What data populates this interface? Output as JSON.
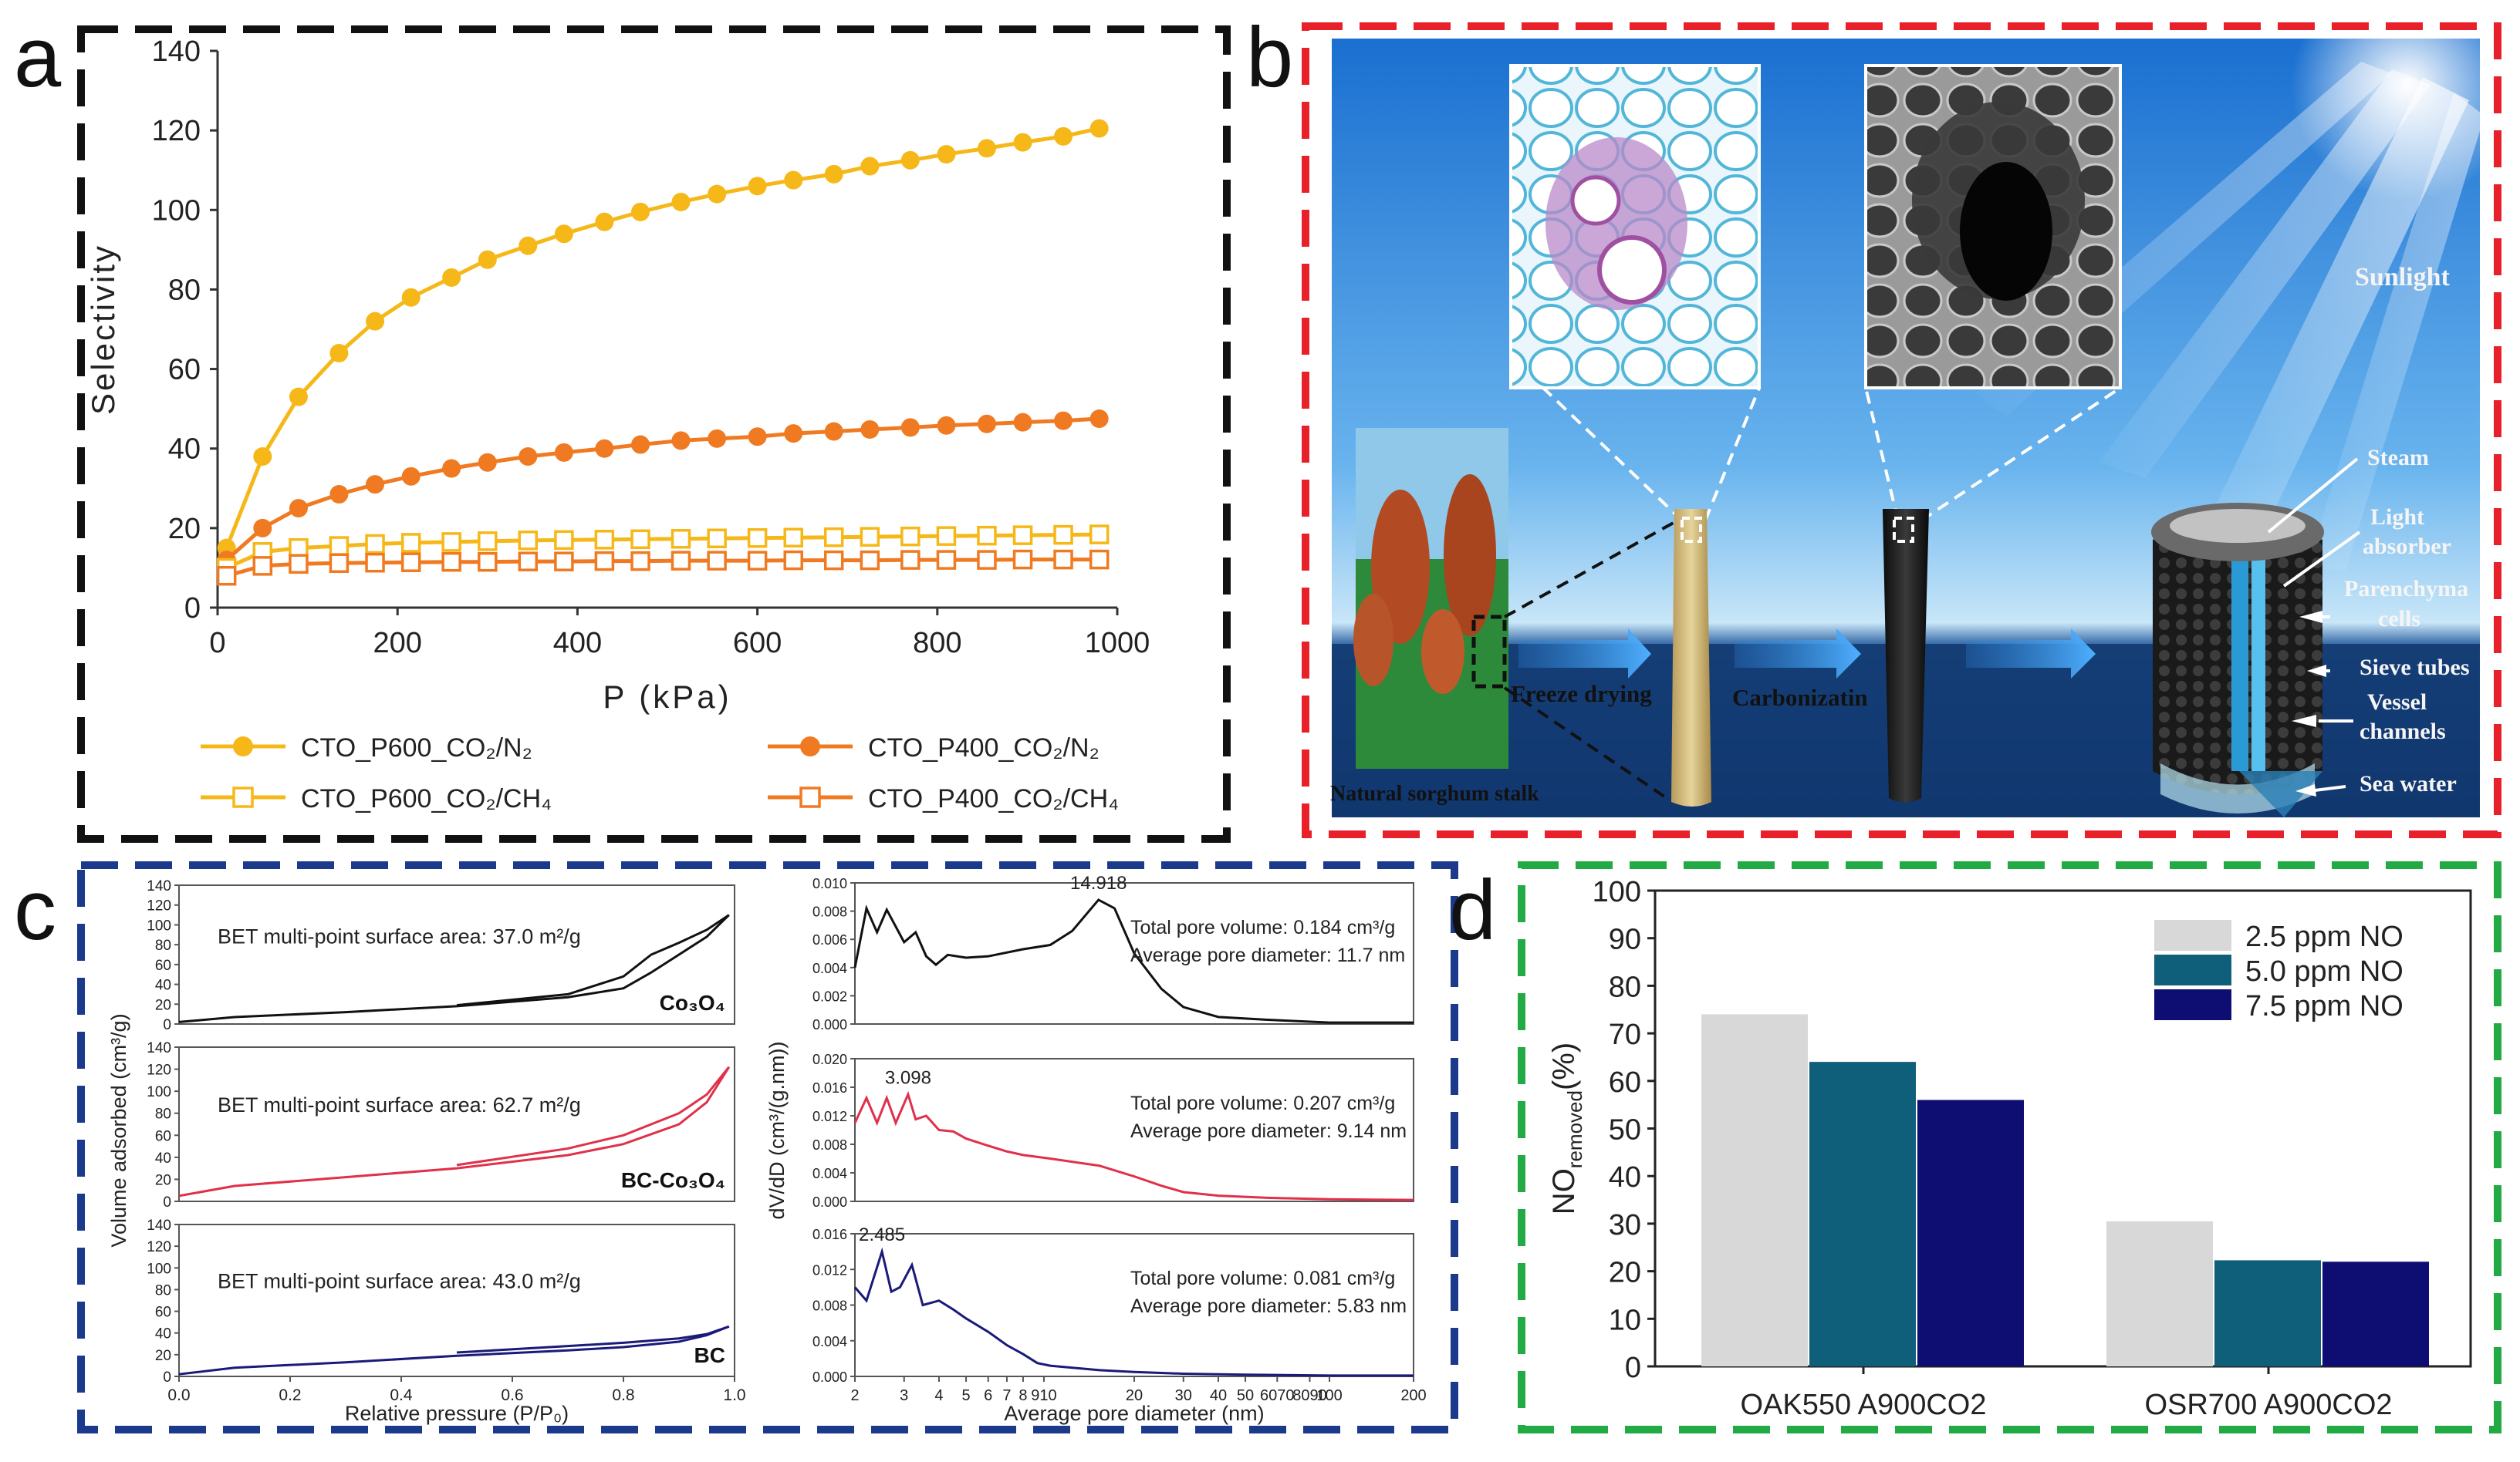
{
  "panel_labels": {
    "a": "a",
    "b": "b",
    "c": "c",
    "d": "d"
  },
  "colors": {
    "yellow": "#f5b818",
    "orange": "#f07a22",
    "black_frame": "#111111",
    "red_frame": "#e8202a",
    "blue_frame": "#1c3a8c",
    "green_frame": "#22aa44",
    "light_gray_bar": "#d8d8d8",
    "teal_bar": "#0f5e7a",
    "navy_bar": "#0d0d72",
    "c_black": "#111111",
    "c_red": "#e0304a",
    "c_blue": "#1a1a7a"
  },
  "chart_data": [
    {
      "id": "a",
      "type": "line",
      "title": "",
      "xlabel": "P (kPa)",
      "ylabel": "Selectivity",
      "xlim": [
        0,
        1000
      ],
      "ylim": [
        0,
        140
      ],
      "xticks": [
        "0",
        "200",
        "400",
        "600",
        "800",
        "1000"
      ],
      "yticks": [
        "0",
        "20",
        "40",
        "60",
        "80",
        "100",
        "120",
        "140"
      ],
      "x": [
        10,
        50,
        90,
        135,
        175,
        215,
        260,
        300,
        345,
        385,
        430,
        470,
        515,
        555,
        600,
        640,
        685,
        725,
        770,
        810,
        855,
        895,
        940,
        980
      ],
      "series": [
        {
          "name": "CTO_P600_CO₂/N₂",
          "color": "yellow",
          "marker": "filled",
          "values": [
            15,
            38,
            53,
            64,
            72,
            78,
            83,
            87.5,
            91,
            94,
            97,
            99.5,
            102,
            104,
            106,
            107.5,
            109,
            111,
            112.5,
            114,
            115.5,
            117,
            118.5,
            120.5
          ]
        },
        {
          "name": "CTO_P400_CO₂/N₂",
          "color": "orange",
          "marker": "filled",
          "values": [
            12,
            20,
            25,
            28.5,
            31,
            33,
            35,
            36.5,
            38,
            39,
            40,
            41,
            42,
            42.5,
            43,
            43.8,
            44.3,
            44.8,
            45.3,
            45.8,
            46.2,
            46.6,
            47,
            47.5
          ]
        },
        {
          "name": "CTO_P600_CO₂/CH₄",
          "color": "yellow",
          "marker": "open",
          "values": [
            10,
            14,
            15,
            15.5,
            16,
            16.3,
            16.5,
            16.7,
            16.9,
            17,
            17.1,
            17.2,
            17.3,
            17.4,
            17.5,
            17.6,
            17.7,
            17.8,
            17.9,
            18,
            18.1,
            18.2,
            18.3,
            18.4
          ]
        },
        {
          "name": "CTO_P400_CO₂/CH₄",
          "color": "orange",
          "marker": "open",
          "values": [
            8,
            10.5,
            11,
            11.2,
            11.3,
            11.4,
            11.5,
            11.5,
            11.6,
            11.6,
            11.7,
            11.7,
            11.8,
            11.8,
            11.8,
            11.9,
            11.9,
            11.9,
            12,
            12,
            12,
            12.1,
            12.1,
            12.1
          ]
        }
      ],
      "legend_position": "bottom"
    },
    {
      "id": "c-isotherm",
      "type": "line",
      "xlabel": "Relative pressure (P/P₀)",
      "ylabel": "Volume adsorbed (cm³/g)",
      "xlim": [
        0,
        1.0
      ],
      "ylim": [
        0,
        140
      ],
      "xticks": [
        "0.0",
        "0.2",
        "0.4",
        "0.6",
        "0.8",
        "1.0"
      ],
      "yticks": [
        "0",
        "20",
        "40",
        "60",
        "80",
        "100",
        "120",
        "140"
      ],
      "subplots": [
        {
          "label": "Co₃O₄",
          "annotation": "BET multi-point surface area: 37.0 m²/g",
          "color": "c_black",
          "adsorption": [
            [
              0,
              2
            ],
            [
              0.1,
              7
            ],
            [
              0.3,
              12
            ],
            [
              0.5,
              18
            ],
            [
              0.7,
              27
            ],
            [
              0.8,
              36
            ],
            [
              0.85,
              52
            ],
            [
              0.9,
              70
            ],
            [
              0.95,
              88
            ],
            [
              0.99,
              110
            ]
          ],
          "desorption": [
            [
              0.99,
              110
            ],
            [
              0.95,
              95
            ],
            [
              0.9,
              82
            ],
            [
              0.85,
              70
            ],
            [
              0.8,
              48
            ],
            [
              0.7,
              30
            ],
            [
              0.5,
              19
            ]
          ]
        },
        {
          "label": "BC-Co₃O₄",
          "annotation": "BET multi-point surface area: 62.7 m²/g",
          "color": "c_red",
          "adsorption": [
            [
              0,
              5
            ],
            [
              0.1,
              14
            ],
            [
              0.3,
              22
            ],
            [
              0.5,
              30
            ],
            [
              0.7,
              42
            ],
            [
              0.8,
              52
            ],
            [
              0.9,
              70
            ],
            [
              0.95,
              90
            ],
            [
              0.99,
              122
            ]
          ],
          "desorption": [
            [
              0.99,
              122
            ],
            [
              0.95,
              97
            ],
            [
              0.9,
              80
            ],
            [
              0.8,
              60
            ],
            [
              0.7,
              48
            ],
            [
              0.5,
              33
            ]
          ]
        },
        {
          "label": "BC",
          "annotation": "BET multi-point surface area: 43.0 m²/g",
          "color": "c_blue",
          "adsorption": [
            [
              0,
              2
            ],
            [
              0.1,
              8
            ],
            [
              0.3,
              13
            ],
            [
              0.5,
              19
            ],
            [
              0.7,
              24
            ],
            [
              0.8,
              27
            ],
            [
              0.9,
              32
            ],
            [
              0.95,
              38
            ],
            [
              0.99,
              46
            ]
          ],
          "desorption": [
            [
              0.99,
              46
            ],
            [
              0.95,
              39
            ],
            [
              0.9,
              35
            ],
            [
              0.8,
              31
            ],
            [
              0.7,
              28
            ],
            [
              0.5,
              22
            ]
          ]
        }
      ]
    },
    {
      "id": "c-pore",
      "type": "line",
      "xlabel": "Average pore diameter (nm)",
      "ylabel": "dV/dD (cm³/(g.nm))",
      "xscale": "log",
      "xlim": [
        2,
        200
      ],
      "xticks": [
        "2",
        "3",
        "4",
        "5",
        "6",
        "7",
        "8",
        "910",
        "20",
        "30",
        "40",
        "50",
        "6070",
        "8090",
        "100",
        "200"
      ],
      "subplots": [
        {
          "label": "Co₃O₄",
          "peak": "14.918",
          "volume": "Total pore volume: 0.184 cm³/g",
          "diameter": "Average pore diameter: 11.7 nm",
          "yticks": [
            "0.000",
            "0.002",
            "0.004",
            "0.006",
            "0.008",
            "0.010"
          ],
          "ylim": [
            0,
            0.01
          ],
          "color": "c_black",
          "points": [
            [
              2,
              0.004
            ],
            [
              2.2,
              0.0082
            ],
            [
              2.4,
              0.0065
            ],
            [
              2.6,
              0.0081
            ],
            [
              3,
              0.0058
            ],
            [
              3.3,
              0.0065
            ],
            [
              3.6,
              0.0048
            ],
            [
              3.9,
              0.0042
            ],
            [
              4.3,
              0.0049
            ],
            [
              5,
              0.0047
            ],
            [
              6,
              0.0048
            ],
            [
              8,
              0.0053
            ],
            [
              10,
              0.0056
            ],
            [
              12,
              0.0066
            ],
            [
              14.9,
              0.0088
            ],
            [
              17,
              0.0082
            ],
            [
              20,
              0.005
            ],
            [
              25,
              0.0025
            ],
            [
              30,
              0.0012
            ],
            [
              40,
              0.0005
            ],
            [
              60,
              0.0003
            ],
            [
              100,
              0.0001
            ],
            [
              200,
              0.0001
            ]
          ]
        },
        {
          "label": "BC-Co₃O₄",
          "peak": "3.098",
          "volume": "Total pore volume: 0.207 cm³/g",
          "diameter": "Average pore diameter: 9.14 nm",
          "yticks": [
            "0.000",
            "0.004",
            "0.008",
            "0.012",
            "0.016",
            "0.020"
          ],
          "ylim": [
            0,
            0.02
          ],
          "color": "c_red",
          "points": [
            [
              2,
              0.011
            ],
            [
              2.2,
              0.0145
            ],
            [
              2.4,
              0.011
            ],
            [
              2.6,
              0.0145
            ],
            [
              2.8,
              0.011
            ],
            [
              3.1,
              0.015
            ],
            [
              3.3,
              0.0115
            ],
            [
              3.6,
              0.012
            ],
            [
              4,
              0.01
            ],
            [
              4.5,
              0.0098
            ],
            [
              5,
              0.0088
            ],
            [
              6,
              0.0078
            ],
            [
              7,
              0.007
            ],
            [
              8,
              0.0065
            ],
            [
              10,
              0.006
            ],
            [
              15,
              0.005
            ],
            [
              20,
              0.0035
            ],
            [
              25,
              0.0022
            ],
            [
              30,
              0.0013
            ],
            [
              40,
              0.0008
            ],
            [
              60,
              0.0005
            ],
            [
              100,
              0.0003
            ],
            [
              200,
              0.0002
            ]
          ]
        },
        {
          "label": "BC",
          "peak": "2.485",
          "volume": "Total pore volume: 0.081 cm³/g",
          "diameter": "Average pore diameter: 5.83 nm",
          "yticks": [
            "0.000",
            "0.004",
            "0.008",
            "0.012",
            "0.016"
          ],
          "ylim": [
            0,
            0.016
          ],
          "color": "c_blue",
          "points": [
            [
              2,
              0.01
            ],
            [
              2.2,
              0.0085
            ],
            [
              2.5,
              0.014
            ],
            [
              2.7,
              0.0095
            ],
            [
              2.9,
              0.01
            ],
            [
              3.2,
              0.0125
            ],
            [
              3.5,
              0.008
            ],
            [
              4,
              0.0085
            ],
            [
              4.5,
              0.0075
            ],
            [
              5,
              0.0065
            ],
            [
              6,
              0.005
            ],
            [
              7,
              0.0035
            ],
            [
              8,
              0.0025
            ],
            [
              9,
              0.0015
            ],
            [
              10,
              0.0012
            ],
            [
              15,
              0.0007
            ],
            [
              20,
              0.0005
            ],
            [
              30,
              0.0003
            ],
            [
              50,
              0.0002
            ],
            [
              100,
              0.0001
            ],
            [
              200,
              0.0001
            ]
          ]
        }
      ]
    },
    {
      "id": "d",
      "type": "bar",
      "xlabel": "",
      "ylabel": "NO",
      "ylabel_sub": "removed",
      "ylabel_unit": "(%)",
      "ylim": [
        0,
        100
      ],
      "yticks": [
        "0",
        "10",
        "20",
        "30",
        "40",
        "50",
        "60",
        "70",
        "80",
        "90",
        "100"
      ],
      "categories": [
        "OAK550 A900CO2",
        "OSR700 A900CO2"
      ],
      "series": [
        {
          "name": "2.5 ppm NO",
          "color": "light_gray_bar",
          "values": [
            74,
            30.5
          ]
        },
        {
          "name": "5.0 ppm NO",
          "color": "teal_bar",
          "values": [
            64,
            22.3
          ]
        },
        {
          "name": "7.5 ppm NO",
          "color": "navy_bar",
          "values": [
            56,
            22
          ]
        }
      ],
      "legend_position": "top-right"
    }
  ],
  "panel_b": {
    "labels": {
      "sunlight": "Sunlight",
      "steam": "Steam",
      "light_absorber_1": "Light",
      "light_absorber_2": "absorber",
      "parenchyma_1": "Parenchyma",
      "parenchyma_2": "cells",
      "sieve": "Sieve tubes",
      "vessel_1": "Vessel",
      "vessel_2": "channels",
      "sea": "Sea water",
      "freeze": "Freeze drying",
      "carbon": "Carbonizatin",
      "stalk": "Natural sorghum stalk"
    }
  }
}
